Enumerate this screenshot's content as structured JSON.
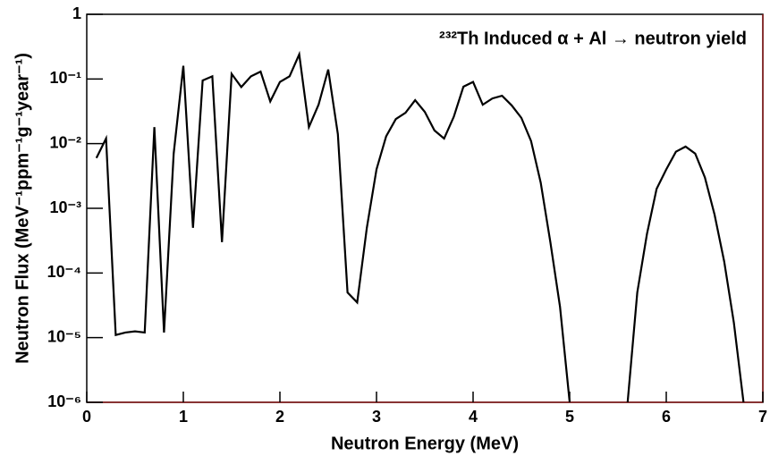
{
  "chart_data": {
    "type": "line",
    "title": "²³²Th Induced α + Al → neutron yield",
    "x_label": "Neutron Energy (MeV)",
    "y_label": "Neutron Flux (MeV⁻¹ppm⁻¹g⁻¹year⁻¹)",
    "x": [
      0.1,
      0.2,
      0.3,
      0.4,
      0.5,
      0.6,
      0.7,
      0.8,
      0.9,
      1.0,
      1.1,
      1.2,
      1.3,
      1.4,
      1.5,
      1.6,
      1.7,
      1.8,
      1.9,
      2.0,
      2.1,
      2.2,
      2.3,
      2.4,
      2.5,
      2.6,
      2.7,
      2.8,
      2.9,
      3.0,
      3.1,
      3.2,
      3.3,
      3.4,
      3.5,
      3.6,
      3.7,
      3.8,
      3.9,
      4.0,
      4.1,
      4.2,
      4.3,
      4.4,
      4.5,
      4.6,
      4.7,
      4.8,
      4.9,
      5.0,
      5.1,
      5.2,
      5.3,
      5.4,
      5.5,
      5.6,
      5.7,
      5.8,
      5.9,
      6.0,
      6.1,
      6.2,
      6.3,
      6.4,
      6.5,
      6.6,
      6.7,
      6.8
    ],
    "series": [
      {
        "color": "#000000",
        "values": [
          0.006,
          0.012,
          1.1e-05,
          1.2e-05,
          1.25e-05,
          1.2e-05,
          0.018,
          1.2e-05,
          0.007,
          0.16,
          0.0005,
          0.095,
          0.11,
          0.0003,
          0.12,
          0.075,
          0.11,
          0.13,
          0.045,
          0.09,
          0.11,
          0.24,
          0.018,
          0.04,
          0.14,
          0.014,
          5e-05,
          3.5e-05,
          0.0005,
          0.004,
          0.013,
          0.024,
          0.03,
          0.047,
          0.031,
          0.016,
          0.012,
          0.026,
          0.076,
          0.09,
          0.04,
          0.05,
          0.055,
          0.039,
          0.025,
          0.011,
          0.0025,
          0.0003,
          3e-05,
          1e-06,
          null,
          null,
          null,
          null,
          null,
          1e-06,
          5e-05,
          0.0004,
          0.002,
          0.004,
          0.0075,
          0.009,
          0.007,
          0.003,
          0.0008,
          0.00015,
          1.7e-05,
          1e-06
        ]
      }
    ],
    "xlim": [
      0,
      7
    ],
    "xticks": [
      0,
      1,
      2,
      3,
      4,
      5,
      6,
      7
    ],
    "ylim": [
      1e-06,
      1
    ],
    "yticks": [
      {
        "value": 1e-06,
        "label": "10⁻⁶"
      },
      {
        "value": 1e-05,
        "label": "10⁻⁵"
      },
      {
        "value": 0.0001,
        "label": "10⁻⁴"
      },
      {
        "value": 0.001,
        "label": "10⁻³"
      },
      {
        "value": 0.01,
        "label": "10⁻²"
      },
      {
        "value": 0.1,
        "label": "10⁻¹"
      },
      1
    ],
    "log_y": true
  }
}
